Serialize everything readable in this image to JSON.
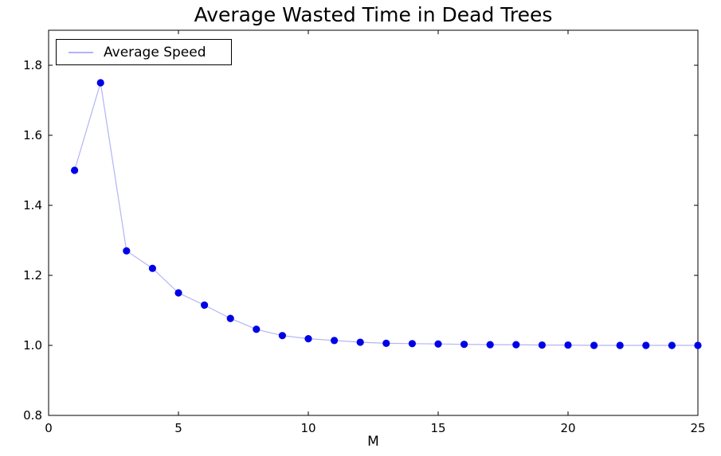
{
  "figure": {
    "background": "#ffffff"
  },
  "chart_data": {
    "type": "line",
    "title": "Average Wasted Time in Dead Trees",
    "xlabel": "M",
    "ylabel": "",
    "x": [
      1,
      2,
      3,
      4,
      5,
      6,
      7,
      8,
      9,
      10,
      11,
      12,
      13,
      14,
      15,
      16,
      17,
      18,
      19,
      20,
      21,
      22,
      23,
      24,
      25
    ],
    "series": [
      {
        "name": "Average Speed",
        "values": [
          1.5,
          1.75,
          1.27,
          1.22,
          1.15,
          1.115,
          1.077,
          1.046,
          1.028,
          1.019,
          1.014,
          1.009,
          1.006,
          1.005,
          1.004,
          1.003,
          1.002,
          1.002,
          1.001,
          1.001,
          1.0,
          1.0,
          1.0,
          1.0,
          1.0
        ]
      }
    ],
    "xlim": [
      0,
      25
    ],
    "ylim": [
      0.8,
      1.9
    ],
    "xticks": [
      0,
      5,
      10,
      15,
      20,
      25
    ],
    "yticks": [
      0.8,
      1.0,
      1.2,
      1.4,
      1.6,
      1.8
    ],
    "grid": false,
    "legend": {
      "position": "upper left",
      "entries": [
        "Average Speed"
      ]
    },
    "colors": {
      "line": "#b3b3f7",
      "marker": "#0000e6",
      "axis": "#000000",
      "background": "#ffffff"
    }
  }
}
